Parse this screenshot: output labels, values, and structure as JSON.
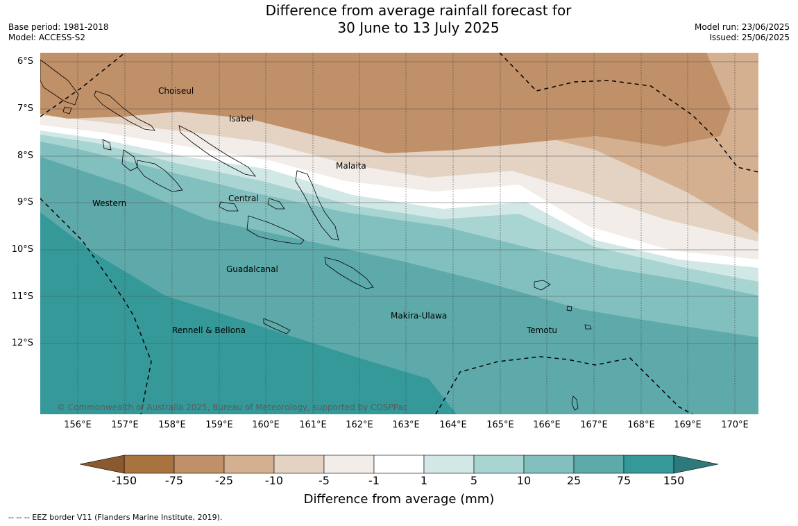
{
  "title_line1": "Difference from average rainfall forecast for",
  "title_line2": "30 June to 13 July 2025",
  "base_period": "Base period: 1981-2018",
  "model": "Model: ACCESS-S2",
  "model_run": "Model run: 23/06/2025",
  "issued": "Issued: 25/06/2025",
  "lat_labels": [
    "6°S",
    "7°S",
    "8°S",
    "9°S",
    "10°S",
    "11°S",
    "12°S"
  ],
  "lon_labels": [
    "156°E",
    "157°E",
    "158°E",
    "159°E",
    "160°E",
    "161°E",
    "162°E",
    "163°E",
    "164°E",
    "165°E",
    "166°E",
    "167°E",
    "168°E",
    "169°E",
    "170°E"
  ],
  "places": {
    "choiseul": "Choiseul",
    "isabel": "Isabel",
    "malaita": "Malaita",
    "central": "Central",
    "western": "Western",
    "guadalcanal": "Guadalcanal",
    "makira": "Makira-Ulawa",
    "rennell": "Rennell & Bellona",
    "temotu": "Temotu"
  },
  "copyright": "© Commonwealth of Australia 2025, Bureau of Meteorology, supported by COSPPac",
  "colorbar": {
    "ticks": [
      "-150",
      "-75",
      "-25",
      "-10",
      "-5",
      "-1",
      "1",
      "5",
      "10",
      "25",
      "75",
      "150"
    ],
    "colors": [
      "#a8733f",
      "#c09068",
      "#d4b090",
      "#e4d2c2",
      "#f2ede8",
      "#ffffff",
      "#d2e8e6",
      "#a8d4d2",
      "#82c0bf",
      "#5eaaaa",
      "#35999a"
    ],
    "under_color": "#8a5a2e",
    "over_color": "#2e7a7a",
    "label": "Difference from average (mm)"
  },
  "eez_note": "--  --  -- EEZ border V11 (Flanders Marine Institute, 2019)."
}
